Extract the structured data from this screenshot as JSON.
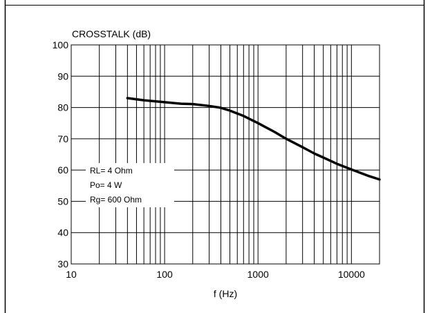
{
  "chart_data": {
    "type": "line",
    "ylabel": "CROSSTALK (dB)",
    "xlabel": "f (Hz)",
    "xscale": "log",
    "xlim": [
      10,
      20000
    ],
    "ylim": [
      30,
      100
    ],
    "grid": true,
    "x_tick_labels": [
      {
        "value": 10,
        "label": "10"
      },
      {
        "value": 100,
        "label": "100"
      },
      {
        "value": 1000,
        "label": "1000"
      },
      {
        "value": 10000,
        "label": "10000"
      }
    ],
    "y_tick_labels": [
      {
        "value": 30,
        "label": "30"
      },
      {
        "value": 40,
        "label": "40"
      },
      {
        "value": 50,
        "label": "50"
      },
      {
        "value": 60,
        "label": "60"
      },
      {
        "value": 70,
        "label": "70"
      },
      {
        "value": 80,
        "label": "80"
      },
      {
        "value": 90,
        "label": "90"
      },
      {
        "value": 100,
        "label": "100"
      }
    ],
    "annotations": [
      "RL= 4 Ohm",
      "Po= 4 W",
      "Rg= 600 Ohm"
    ],
    "series": [
      {
        "x": [
          40,
          60,
          100,
          150,
          200,
          300,
          400,
          500,
          700,
          1000,
          1500,
          2000,
          3000,
          4000,
          5000,
          7000,
          10000,
          15000,
          20000
        ],
        "y": [
          83,
          82.3,
          81.7,
          81.2,
          81.1,
          80.5,
          79.9,
          79,
          77.3,
          75,
          72.2,
          70,
          67.3,
          65.3,
          64,
          62,
          60.2,
          58.2,
          57
        ]
      }
    ]
  }
}
